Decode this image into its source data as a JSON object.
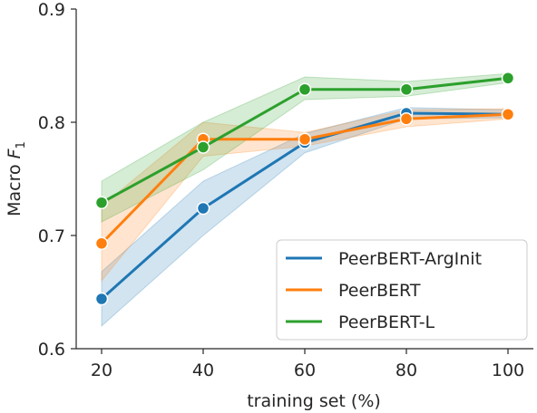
{
  "chart_data": {
    "type": "line",
    "xlabel": "training set (%)",
    "ylabel": "Macro F",
    "ylabel_subscript": "1",
    "x": [
      20,
      40,
      60,
      80,
      100
    ],
    "xlim": [
      15,
      105
    ],
    "ylim": [
      0.6,
      0.9
    ],
    "xticks": [
      "20",
      "40",
      "60",
      "80",
      "100"
    ],
    "yticks": [
      "0.6",
      "0.7",
      "0.8",
      "0.9"
    ],
    "ytick_values": [
      0.6,
      0.7,
      0.8,
      0.9
    ],
    "legend_position": "lower-right",
    "series": [
      {
        "name": "PeerBERT-ArgInit",
        "color": "#1f77b4",
        "values": [
          0.644,
          0.724,
          0.782,
          0.808,
          0.807
        ],
        "band_low": [
          0.62,
          0.7,
          0.773,
          0.803,
          0.804
        ],
        "band_high": [
          0.668,
          0.748,
          0.79,
          0.813,
          0.811
        ]
      },
      {
        "name": "PeerBERT",
        "color": "#ff7f0e",
        "values": [
          0.693,
          0.785,
          0.785,
          0.803,
          0.807
        ],
        "band_low": [
          0.66,
          0.77,
          0.779,
          0.796,
          0.803
        ],
        "band_high": [
          0.726,
          0.8,
          0.791,
          0.811,
          0.812
        ]
      },
      {
        "name": "PeerBERT-L",
        "color": "#2ca02c",
        "values": [
          0.729,
          0.778,
          0.829,
          0.829,
          0.839
        ],
        "band_low": [
          0.712,
          0.758,
          0.82,
          0.823,
          0.835
        ],
        "band_high": [
          0.748,
          0.8,
          0.84,
          0.836,
          0.843
        ]
      }
    ]
  }
}
